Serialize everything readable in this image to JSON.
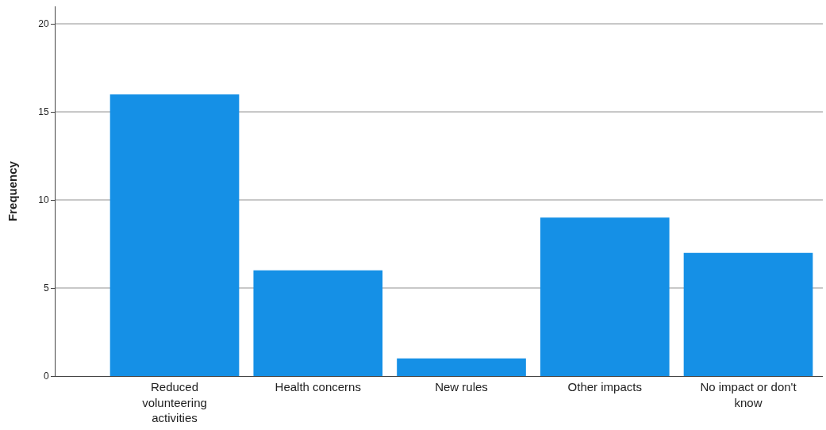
{
  "chart_data": {
    "type": "bar",
    "ylabel": "Frequency",
    "categories": [
      "Reduced volunteering activities",
      "Health concerns",
      "New rules",
      "Other impacts",
      "No impact or don't know"
    ],
    "values": [
      16,
      6,
      1,
      9,
      7
    ],
    "color": "#1590e6",
    "ylim": [
      0,
      21
    ],
    "yticks": [
      0,
      5,
      10,
      15,
      20
    ],
    "grid": "y",
    "legend": false
  }
}
